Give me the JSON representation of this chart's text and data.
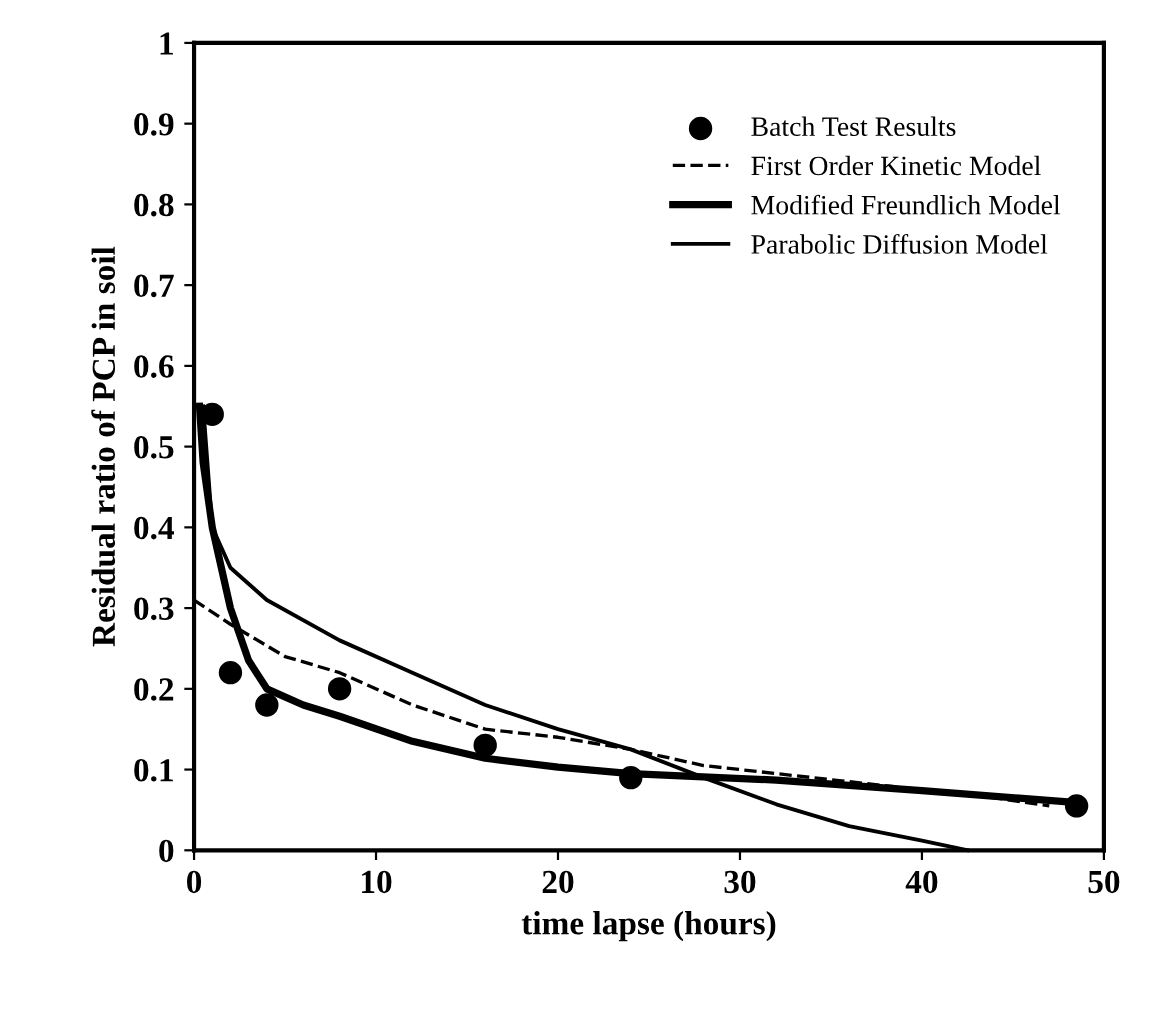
{
  "chart_data": {
    "type": "scatter",
    "xlabel": "time lapse (hours)",
    "ylabel": "Residual ratio of PCP in soil",
    "xlim": [
      0,
      50
    ],
    "ylim": [
      0,
      1
    ],
    "xticks": [
      0,
      10,
      20,
      30,
      40,
      50
    ],
    "yticks": [
      0,
      0.1,
      0.2,
      0.3,
      0.4,
      0.5,
      0.6,
      0.7,
      0.8,
      0.9,
      1
    ],
    "legend": "top right",
    "grid": false,
    "series": [
      {
        "name": "Batch Test Results",
        "marker": "circle",
        "color": "#000000",
        "x": [
          1,
          2,
          4,
          8,
          16,
          24,
          48.5
        ],
        "values": [
          0.54,
          0.22,
          0.18,
          0.2,
          0.13,
          0.09,
          0.055
        ]
      },
      {
        "name": "First Order Kinetic Model",
        "type": "line",
        "line_style": "dashed",
        "color": "#000000",
        "x": [
          0,
          2,
          5,
          8,
          12,
          16,
          20,
          24,
          28,
          32,
          36,
          40,
          44,
          47
        ],
        "values": [
          0.31,
          0.28,
          0.24,
          0.22,
          0.18,
          0.15,
          0.14,
          0.125,
          0.105,
          0.095,
          0.085,
          0.075,
          0.065,
          0.055
        ]
      },
      {
        "name": "Modified Freundlich Model",
        "type": "line",
        "line_style": "solid",
        "color": "#000000",
        "x": [
          0.3,
          0.5,
          1,
          2,
          3,
          4,
          6,
          8,
          12,
          16,
          20,
          24,
          32,
          40,
          48
        ],
        "values": [
          0.55,
          0.48,
          0.4,
          0.3,
          0.235,
          0.2,
          0.18,
          0.166,
          0.135,
          0.114,
          0.103,
          0.095,
          0.087,
          0.074,
          0.06
        ]
      },
      {
        "name": "Parabolic Diffusion Model",
        "type": "line",
        "line_style": "solid",
        "color": "#000000",
        "x": [
          0.5,
          1,
          2,
          4,
          8,
          12,
          16,
          20,
          24,
          28,
          32,
          36,
          40,
          42.5
        ],
        "values": [
          0.55,
          0.4,
          0.35,
          0.31,
          0.26,
          0.22,
          0.18,
          0.15,
          0.125,
          0.09,
          0.057,
          0.03,
          0.012,
          0
        ]
      }
    ]
  }
}
